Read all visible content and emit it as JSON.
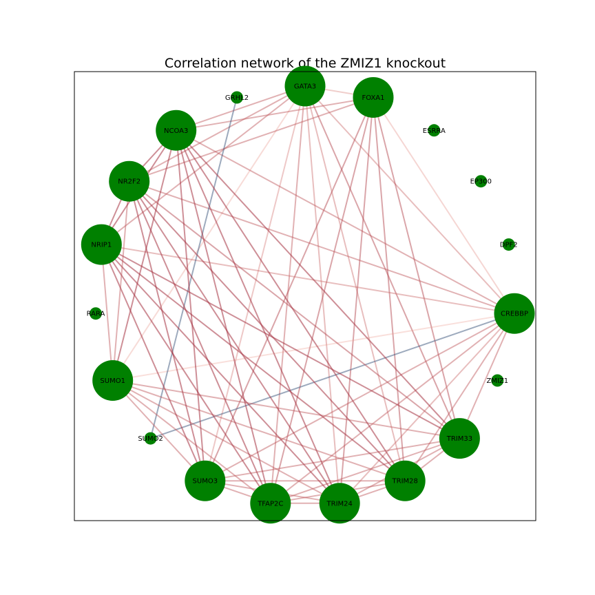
{
  "title": "Correlation network of the ZMIZ1 knockout",
  "colors": {
    "node_fill": "#008000",
    "edge_positive": "#c0392b",
    "edge_negative": "#4a6080",
    "frame": "#000000"
  },
  "nodes": [
    {
      "id": "GATA3",
      "label": "GATA3",
      "connected": true
    },
    {
      "id": "FOXA1",
      "label": "FOXA1",
      "connected": true
    },
    {
      "id": "ESRRA",
      "label": "ESRRA",
      "connected": false
    },
    {
      "id": "EP300",
      "label": "EP300",
      "connected": false
    },
    {
      "id": "DPF2",
      "label": "DPF2",
      "connected": false
    },
    {
      "id": "CREBBP",
      "label": "CREBBP",
      "connected": true
    },
    {
      "id": "ZMIZ1",
      "label": "ZMIZ1",
      "connected": false
    },
    {
      "id": "TRIM33",
      "label": "TRIM33",
      "connected": true
    },
    {
      "id": "TRIM28",
      "label": "TRIM28",
      "connected": true
    },
    {
      "id": "TRIM24",
      "label": "TRIM24",
      "connected": true
    },
    {
      "id": "TFAP2C",
      "label": "TFAP2C",
      "connected": true
    },
    {
      "id": "SUMO3",
      "label": "SUMO3",
      "connected": true
    },
    {
      "id": "SUMO2",
      "label": "SUMO2",
      "connected": false
    },
    {
      "id": "SUMO1",
      "label": "SUMO1",
      "connected": true
    },
    {
      "id": "RARA",
      "label": "RARA",
      "connected": false
    },
    {
      "id": "NRIP1",
      "label": "NRIP1",
      "connected": true
    },
    {
      "id": "NR2F2",
      "label": "NR2F2",
      "connected": true
    },
    {
      "id": "NCOA3",
      "label": "NCOA3",
      "connected": true
    },
    {
      "id": "GRHL2",
      "label": "GRHL2",
      "connected": false
    }
  ],
  "edges": [
    [
      "GATA3",
      "FOXA1",
      0.35
    ],
    [
      "GATA3",
      "NCOA3",
      0.6
    ],
    [
      "GATA3",
      "NR2F2",
      0.6
    ],
    [
      "GATA3",
      "NRIP1",
      0.6
    ],
    [
      "GATA3",
      "SUMO1",
      0.2
    ],
    [
      "GATA3",
      "SUMO3",
      0.4
    ],
    [
      "GATA3",
      "TFAP2C",
      0.6
    ],
    [
      "GATA3",
      "TRIM24",
      0.5
    ],
    [
      "GATA3",
      "TRIM28",
      0.5
    ],
    [
      "GATA3",
      "TRIM33",
      0.7
    ],
    [
      "GATA3",
      "CREBBP",
      0.5
    ],
    [
      "FOXA1",
      "NCOA3",
      0.6
    ],
    [
      "FOXA1",
      "NR2F2",
      0.6
    ],
    [
      "FOXA1",
      "SUMO3",
      0.7
    ],
    [
      "FOXA1",
      "TFAP2C",
      0.7
    ],
    [
      "FOXA1",
      "TRIM24",
      0.7
    ],
    [
      "FOXA1",
      "TRIM28",
      0.7
    ],
    [
      "FOXA1",
      "TRIM33",
      0.7
    ],
    [
      "FOXA1",
      "CREBBP",
      0.25
    ],
    [
      "CREBBP",
      "NCOA3",
      0.6
    ],
    [
      "CREBBP",
      "NR2F2",
      0.6
    ],
    [
      "CREBBP",
      "NRIP1",
      0.5
    ],
    [
      "CREBBP",
      "SUMO1",
      0.15
    ],
    [
      "CREBBP",
      "SUMO3",
      0.6
    ],
    [
      "CREBBP",
      "TFAP2C",
      0.6
    ],
    [
      "CREBBP",
      "TRIM24",
      0.5
    ],
    [
      "CREBBP",
      "TRIM28",
      0.6
    ],
    [
      "CREBBP",
      "TRIM33",
      0.6
    ],
    [
      "CREBBP",
      "SUMO2",
      -0.8
    ],
    [
      "GRHL2",
      "SUMO2",
      -0.8
    ],
    [
      "TRIM33",
      "NCOA3",
      0.85
    ],
    [
      "TRIM33",
      "NR2F2",
      0.7
    ],
    [
      "TRIM33",
      "NRIP1",
      0.85
    ],
    [
      "TRIM33",
      "SUMO1",
      0.6
    ],
    [
      "TRIM33",
      "SUMO3",
      0.6
    ],
    [
      "TRIM33",
      "TFAP2C",
      0.6
    ],
    [
      "TRIM33",
      "TRIM24",
      0.6
    ],
    [
      "TRIM33",
      "TRIM28",
      0.6
    ],
    [
      "TRIM28",
      "NCOA3",
      0.85
    ],
    [
      "TRIM28",
      "NR2F2",
      0.85
    ],
    [
      "TRIM28",
      "NRIP1",
      0.85
    ],
    [
      "TRIM28",
      "SUMO1",
      0.6
    ],
    [
      "TRIM28",
      "SUMO3",
      0.6
    ],
    [
      "TRIM28",
      "TFAP2C",
      0.6
    ],
    [
      "TRIM28",
      "TRIM24",
      0.6
    ],
    [
      "TRIM24",
      "NCOA3",
      0.85
    ],
    [
      "TRIM24",
      "NR2F2",
      0.85
    ],
    [
      "TRIM24",
      "NRIP1",
      0.85
    ],
    [
      "TRIM24",
      "SUMO1",
      0.6
    ],
    [
      "TRIM24",
      "SUMO3",
      0.6
    ],
    [
      "TRIM24",
      "TFAP2C",
      0.6
    ],
    [
      "TFAP2C",
      "NCOA3",
      0.85
    ],
    [
      "TFAP2C",
      "NR2F2",
      0.85
    ],
    [
      "TFAP2C",
      "NRIP1",
      0.85
    ],
    [
      "TFAP2C",
      "SUMO1",
      0.6
    ],
    [
      "TFAP2C",
      "SUMO3",
      0.6
    ],
    [
      "SUMO3",
      "NCOA3",
      0.85
    ],
    [
      "SUMO3",
      "NR2F2",
      0.85
    ],
    [
      "SUMO3",
      "NRIP1",
      0.85
    ],
    [
      "SUMO3",
      "SUMO1",
      0.6
    ],
    [
      "SUMO1",
      "NCOA3",
      0.85
    ],
    [
      "SUMO1",
      "NR2F2",
      0.6
    ],
    [
      "SUMO1",
      "NRIP1",
      0.6
    ],
    [
      "NRIP1",
      "NCOA3",
      0.85
    ],
    [
      "NRIP1",
      "NR2F2",
      0.85
    ],
    [
      "NR2F2",
      "NCOA3",
      0.85
    ]
  ]
}
